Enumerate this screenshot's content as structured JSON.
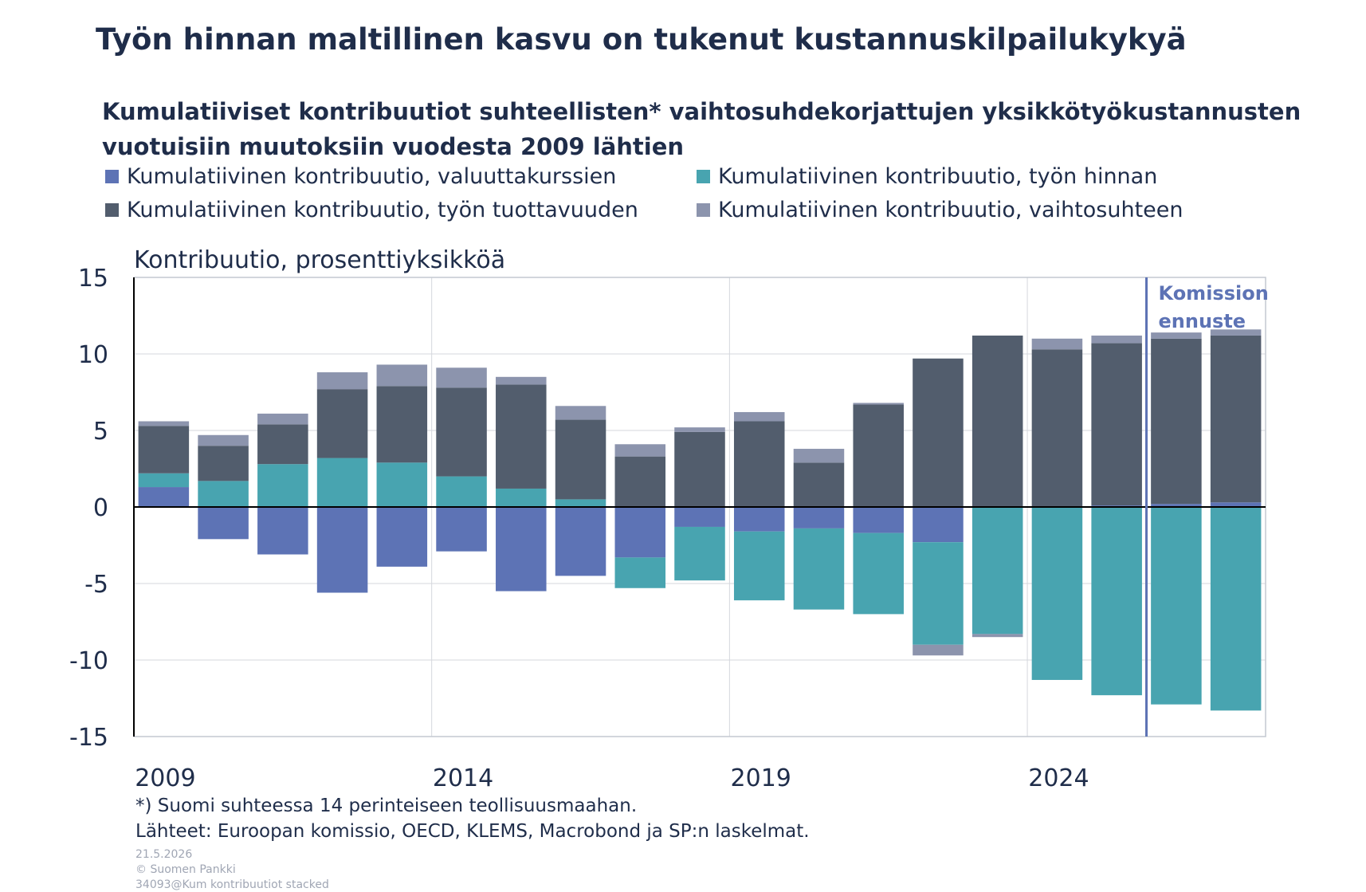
{
  "title": "Työn hinnan maltillinen kasvu on tukenut kustannuskilpailukykyä",
  "subtitle": "Kumulatiiviset kontribuutiot suhteellisten* vaihtosuhdekorjattujen yksikkötyökustannusten vuotuisiin muutoksiin vuodesta 2009 lähtien",
  "colors": {
    "valuutta": "#5d73b5",
    "tyon_hinta": "#48a4b0",
    "tuottavuus": "#525d6d",
    "vaihtosuhde": "#8c94ad",
    "forecast_line": "#5d73b5",
    "text": "#1f2d4a"
  },
  "footnotes": {
    "note": "*) Suomi suhteessa 14 perinteiseen teollisuusmaahan.",
    "sources": "Lähteet: Euroopan komissio, OECD, KLEMS, Macrobond ja SP:n laskelmat.",
    "date": "21.5.2026",
    "copyright": "© Suomen Pankki",
    "chart_id": "34093@Kum kontribuutiot stacked"
  },
  "chart_data": {
    "type": "bar",
    "stacked": true,
    "ylabel": "Kontribuutio, prosenttiyksikköä",
    "ylim": [
      -15,
      15
    ],
    "yticks": [
      15,
      10,
      5,
      0,
      -5,
      -10,
      -15
    ],
    "ytick_labels": [
      "15",
      "10",
      "5",
      "0",
      "-5",
      "-10",
      "-15"
    ],
    "grid": true,
    "legend_position": "top",
    "x": [
      2009,
      2010,
      2011,
      2012,
      2013,
      2014,
      2015,
      2016,
      2017,
      2018,
      2019,
      2020,
      2021,
      2022,
      2023,
      2024,
      2025,
      2026,
      2027
    ],
    "x_ticks": [
      2009,
      2014,
      2019,
      2024
    ],
    "x_tick_labels": [
      "2009",
      "2014",
      "2019",
      "2024"
    ],
    "series": [
      {
        "name": "Kumulatiivinen kontribuutio, valuuttakurssien",
        "key": "valuutta",
        "values": [
          1.3,
          -2.1,
          -3.1,
          -5.6,
          -3.9,
          -2.9,
          -5.5,
          -4.5,
          -3.3,
          -1.3,
          -1.6,
          -1.4,
          -1.7,
          -2.3,
          0.0,
          0.0,
          0.1,
          0.2,
          0.3
        ]
      },
      {
        "name": "Kumulatiivinen kontribuutio, työn hinnan",
        "key": "tyon_hinta",
        "values": [
          0.9,
          1.7,
          2.8,
          3.2,
          2.9,
          2.0,
          1.2,
          0.5,
          -2.0,
          -3.5,
          -4.5,
          -5.3,
          -5.3,
          -6.7,
          -8.3,
          -11.3,
          -12.3,
          -12.9,
          -13.3
        ]
      },
      {
        "name": "Kumulatiivinen kontribuutio, työn tuottavuuden",
        "key": "tuottavuus",
        "values": [
          3.1,
          2.3,
          2.6,
          4.5,
          5.0,
          5.8,
          6.8,
          5.2,
          3.3,
          4.9,
          5.6,
          2.9,
          6.7,
          9.7,
          11.2,
          10.3,
          10.6,
          10.8,
          10.9
        ]
      },
      {
        "name": "Kumulatiivinen kontribuutio, vaihtosuhteen",
        "key": "vaihtosuhde",
        "values": [
          0.3,
          0.7,
          0.7,
          1.1,
          1.4,
          1.3,
          0.5,
          0.9,
          0.8,
          0.3,
          0.6,
          0.9,
          0.1,
          -0.7,
          -0.2,
          0.7,
          0.5,
          0.4,
          0.4
        ]
      }
    ],
    "forecast_marker": {
      "after": 2025,
      "label_line1": "Komission",
      "label_line2": "ennuste"
    }
  }
}
